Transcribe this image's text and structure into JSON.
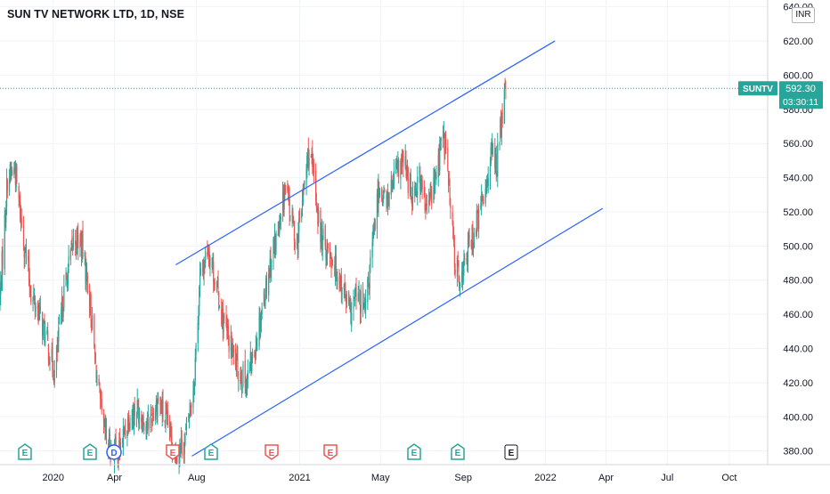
{
  "title": "SUN TV NETWORK LTD, 1D, NSE",
  "currency": "INR",
  "price_tag": {
    "symbol": "SUNTV",
    "price": "592.30",
    "countdown": "03:30:11"
  },
  "colors": {
    "up": "#26a69a",
    "down": "#ef5350",
    "trendline": "#2962ff",
    "price_line": "#26a69a",
    "earnings": "#26a69a",
    "dividend": "#2962ff",
    "earnings_down": "#ef5350",
    "upcoming": "#131722"
  },
  "events": [
    {
      "label": "E",
      "kind": "earnings"
    },
    {
      "label": "E",
      "kind": "earnings"
    },
    {
      "label": "D",
      "kind": "dividend"
    },
    {
      "label": "E",
      "kind": "earnings_down"
    },
    {
      "label": "E",
      "kind": "earnings"
    },
    {
      "label": "E",
      "kind": "earnings_down"
    },
    {
      "label": "E",
      "kind": "earnings_down"
    },
    {
      "label": "E",
      "kind": "earnings"
    },
    {
      "label": "E",
      "kind": "earnings"
    },
    {
      "label": "E",
      "kind": "upcoming"
    }
  ],
  "chart_data": {
    "type": "candlestick",
    "title": "SUN TV NETWORK LTD, 1D, NSE",
    "x_ticks": [
      "2020",
      "Apr",
      "Aug",
      "2021",
      "May",
      "Sep",
      "2022",
      "Apr",
      "Jul",
      "Oct"
    ],
    "y_ticks": [
      380,
      400,
      420,
      440,
      460,
      480,
      500,
      520,
      540,
      560,
      580,
      600,
      620,
      640
    ],
    "y_tick_labels": [
      "380.00",
      "400.00",
      "420.00",
      "440.00",
      "460.00",
      "480.00",
      "500.00",
      "520.00",
      "540.00",
      "560.00",
      "580.00",
      "600.00",
      "620.00",
      "640.00"
    ],
    "ylim": [
      372,
      644
    ],
    "x_range": [
      "2019-10-14",
      "2022-11-27"
    ],
    "last_price": 592.3,
    "grid": true,
    "price_path": [
      [
        "2019-10-14",
        470
      ],
      [
        "2019-10-25",
        540
      ],
      [
        "2019-11-05",
        545
      ],
      [
        "2019-11-16",
        510
      ],
      [
        "2019-11-30",
        470
      ],
      [
        "2019-12-12",
        460
      ],
      [
        "2019-12-25",
        440
      ],
      [
        "2020-01-03",
        425
      ],
      [
        "2020-01-16",
        470
      ],
      [
        "2020-02-01",
        505
      ],
      [
        "2020-02-13",
        500
      ],
      [
        "2020-02-24",
        470
      ],
      [
        "2020-03-04",
        430
      ],
      [
        "2020-03-14",
        395
      ],
      [
        "2020-03-24",
        382
      ],
      [
        "2020-04-08",
        380
      ],
      [
        "2020-04-22",
        400
      ],
      [
        "2020-05-05",
        405
      ],
      [
        "2020-05-20",
        395
      ],
      [
        "2020-06-05",
        410
      ],
      [
        "2020-06-18",
        395
      ],
      [
        "2020-07-01",
        380
      ],
      [
        "2020-07-14",
        385
      ],
      [
        "2020-07-28",
        420
      ],
      [
        "2020-08-06",
        480
      ],
      [
        "2020-08-18",
        500
      ],
      [
        "2020-08-31",
        475
      ],
      [
        "2020-09-10",
        455
      ],
      [
        "2020-09-21",
        440
      ],
      [
        "2020-10-01",
        428
      ],
      [
        "2020-10-14",
        420
      ],
      [
        "2020-10-26",
        440
      ],
      [
        "2020-11-09",
        470
      ],
      [
        "2020-11-23",
        500
      ],
      [
        "2020-12-03",
        510
      ],
      [
        "2020-12-10",
        535
      ],
      [
        "2020-12-18",
        520
      ],
      [
        "2020-12-28",
        500
      ],
      [
        "2021-01-06",
        530
      ],
      [
        "2021-01-14",
        555
      ],
      [
        "2021-01-22",
        540
      ],
      [
        "2021-02-01",
        505
      ],
      [
        "2021-02-16",
        495
      ],
      [
        "2021-03-03",
        480
      ],
      [
        "2021-03-17",
        460
      ],
      [
        "2021-03-27",
        472
      ],
      [
        "2021-04-08",
        460
      ],
      [
        "2021-04-19",
        500
      ],
      [
        "2021-04-29",
        535
      ],
      [
        "2021-05-10",
        525
      ],
      [
        "2021-05-22",
        540
      ],
      [
        "2021-06-04",
        550
      ],
      [
        "2021-06-16",
        530
      ],
      [
        "2021-06-28",
        540
      ],
      [
        "2021-07-08",
        520
      ],
      [
        "2021-07-22",
        540
      ],
      [
        "2021-08-01",
        565
      ],
      [
        "2021-08-07",
        555
      ],
      [
        "2021-08-13",
        520
      ],
      [
        "2021-08-20",
        490
      ],
      [
        "2021-08-29",
        480
      ],
      [
        "2021-09-09",
        500
      ],
      [
        "2021-09-19",
        510
      ],
      [
        "2021-09-29",
        525
      ],
      [
        "2021-10-06",
        540
      ],
      [
        "2021-10-13",
        555
      ],
      [
        "2021-10-20",
        548
      ],
      [
        "2021-10-27",
        570
      ],
      [
        "2021-11-03",
        592.3
      ]
    ],
    "annotations": [
      {
        "type": "trendline",
        "name": "channel-upper",
        "from": [
          "2020-07-01",
          489
        ],
        "to": [
          "2022-01-15",
          620
        ]
      },
      {
        "type": "trendline",
        "name": "channel-lower",
        "from": [
          "2020-07-25",
          377
        ],
        "to": [
          "2022-03-27",
          522
        ]
      }
    ]
  }
}
